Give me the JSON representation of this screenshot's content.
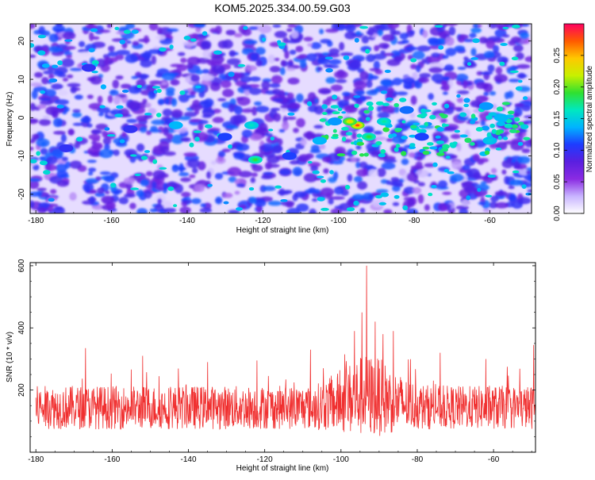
{
  "title": "KOM5.2025.334.00.59.G03",
  "colors": {
    "background": "#ffffff",
    "axis": "#000000",
    "snr_line": "#f03030",
    "colorbar_stops": [
      "#ffffff",
      "#c8b4ff",
      "#8a2be2",
      "#5a1fe0",
      "#1e3cff",
      "#00b4ff",
      "#00e8c0",
      "#30e030",
      "#c8f000",
      "#ffc800",
      "#ff5a00",
      "#ff0060"
    ]
  },
  "chart_data": [
    {
      "type": "heatmap",
      "title": "KOM5.2025.334.00.59.G03",
      "xlabel": "Height of straight line (km)",
      "ylabel": "Frequency (Hz)",
      "xlim": [
        -181.5,
        -49
      ],
      "ylim": [
        -25,
        24.5
      ],
      "x_ticks": [
        -180,
        -160,
        -140,
        -120,
        -100,
        -80,
        -60
      ],
      "y_ticks": [
        -20,
        -10,
        0,
        10,
        20
      ],
      "colorbar": {
        "label": "Normalized spectral amplitude",
        "range": [
          0,
          0.3
        ],
        "ticks": [
          "0.00",
          "0.05",
          "0.10",
          "0.15",
          "0.20",
          "0.25"
        ]
      },
      "hotspots": [
        {
          "x": -95,
          "y": -2,
          "v": 0.28
        },
        {
          "x": -97,
          "y": -1,
          "v": 0.24
        },
        {
          "x": -92,
          "y": -5,
          "v": 0.19
        },
        {
          "x": -88,
          "y": -1,
          "v": 0.17
        },
        {
          "x": -122,
          "y": -11,
          "v": 0.19
        },
        {
          "x": -123,
          "y": -2,
          "v": 0.16
        },
        {
          "x": -143,
          "y": -2,
          "v": 0.14
        },
        {
          "x": -60,
          "y": -6,
          "v": 0.15
        },
        {
          "x": -61,
          "y": 3,
          "v": 0.13
        },
        {
          "x": -57,
          "y": 0,
          "v": 0.14
        },
        {
          "x": -105,
          "y": -6,
          "v": 0.14
        },
        {
          "x": -101,
          "y": -1,
          "v": 0.13
        },
        {
          "x": -82,
          "y": 2,
          "v": 0.12
        },
        {
          "x": -78,
          "y": -5,
          "v": 0.11
        },
        {
          "x": -113,
          "y": -10,
          "v": 0.11
        },
        {
          "x": -130,
          "y": -5,
          "v": 0.11
        },
        {
          "x": -155,
          "y": -3,
          "v": 0.1
        },
        {
          "x": -172,
          "y": -8,
          "v": 0.1
        },
        {
          "x": -166,
          "y": 13,
          "v": 0.1
        },
        {
          "x": -176,
          "y": 20,
          "v": 0.09
        },
        {
          "x": -135,
          "y": 14,
          "v": 0.09
        },
        {
          "x": -69,
          "y": 18,
          "v": 0.09
        },
        {
          "x": -147,
          "y": -16,
          "v": 0.09
        },
        {
          "x": -87,
          "y": -13,
          "v": 0.09
        },
        {
          "x": -52,
          "y": -12,
          "v": 0.09
        }
      ]
    },
    {
      "type": "line",
      "xlabel": "Height of straight line (km)",
      "ylabel": "SNR (10 * v/v)",
      "xlim": [
        -181.5,
        -49
      ],
      "ylim": [
        0,
        610
      ],
      "x_ticks": [
        -180,
        -160,
        -140,
        -120,
        -100,
        -80,
        -60
      ],
      "y_ticks": [
        200,
        400,
        600
      ],
      "description_base": {
        "baseline_mean": 120,
        "noise_amplitude": 70
      },
      "peaks": [
        {
          "x": -93.3,
          "y": 600
        },
        {
          "x": -94.5,
          "y": 450
        },
        {
          "x": -91.0,
          "y": 420
        },
        {
          "x": -96.5,
          "y": 390
        },
        {
          "x": -89.0,
          "y": 380
        },
        {
          "x": -167,
          "y": 335
        },
        {
          "x": -152,
          "y": 310
        },
        {
          "x": -108,
          "y": 330
        },
        {
          "x": -99,
          "y": 315
        },
        {
          "x": -74,
          "y": 320
        },
        {
          "x": -49.5,
          "y": 345
        },
        {
          "x": -135,
          "y": 290
        },
        {
          "x": -122,
          "y": 295
        },
        {
          "x": -62,
          "y": 300
        }
      ]
    }
  ]
}
